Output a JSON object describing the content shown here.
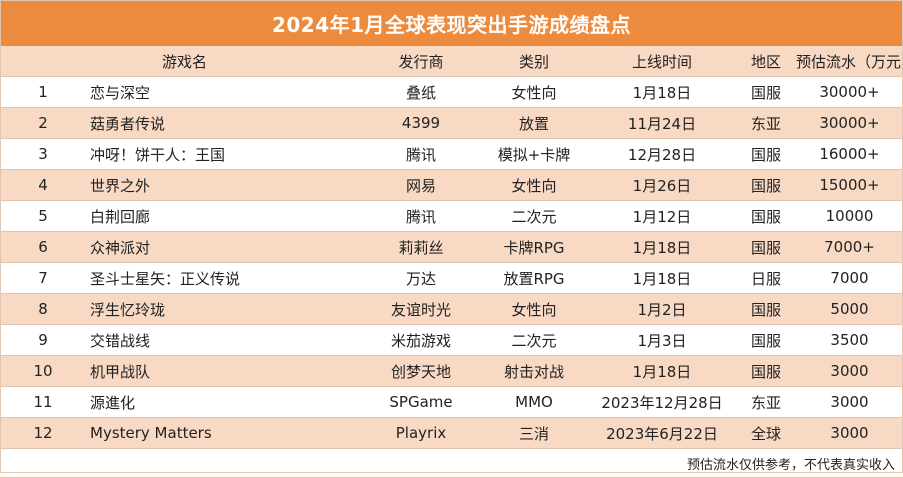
{
  "title": "2024年1月全球表现突出手游成绩盘点",
  "headers": {
    "index": "",
    "name": "游戏名",
    "publisher": "发行商",
    "category": "类别",
    "launch": "上线时间",
    "region": "地区",
    "revenue": "预估流水（万元）"
  },
  "rows": [
    {
      "index": "1",
      "name": "恋与深空",
      "publisher": "叠纸",
      "category": "女性向",
      "launch": "1月18日",
      "region": "国服",
      "revenue": "30000+"
    },
    {
      "index": "2",
      "name": "菇勇者传说",
      "publisher": "4399",
      "category": "放置",
      "launch": "11月24日",
      "region": "东亚",
      "revenue": "30000+"
    },
    {
      "index": "3",
      "name": "冲呀！饼干人：王国",
      "publisher": "腾讯",
      "category": "模拟+卡牌",
      "launch": "12月28日",
      "region": "国服",
      "revenue": "16000+"
    },
    {
      "index": "4",
      "name": "世界之外",
      "publisher": "网易",
      "category": "女性向",
      "launch": "1月26日",
      "region": "国服",
      "revenue": "15000+"
    },
    {
      "index": "5",
      "name": "白荆回廊",
      "publisher": "腾讯",
      "category": "二次元",
      "launch": "1月12日",
      "region": "国服",
      "revenue": "10000"
    },
    {
      "index": "6",
      "name": "众神派对",
      "publisher": "莉莉丝",
      "category": "卡牌RPG",
      "launch": "1月18日",
      "region": "国服",
      "revenue": "7000+"
    },
    {
      "index": "7",
      "name": "圣斗士星矢：正义传说",
      "publisher": "万达",
      "category": "放置RPG",
      "launch": "1月18日",
      "region": "日服",
      "revenue": "7000"
    },
    {
      "index": "8",
      "name": "浮生忆玲珑",
      "publisher": "友谊时光",
      "category": "女性向",
      "launch": "1月2日",
      "region": "国服",
      "revenue": "5000"
    },
    {
      "index": "9",
      "name": "交错战线",
      "publisher": "米茄游戏",
      "category": "二次元",
      "launch": "1月3日",
      "region": "国服",
      "revenue": "3500"
    },
    {
      "index": "10",
      "name": "机甲战队",
      "publisher": "创梦天地",
      "category": "射击对战",
      "launch": "1月18日",
      "region": "国服",
      "revenue": "3000"
    },
    {
      "index": "11",
      "name": "源進化",
      "publisher": "SPGame",
      "category": "MMO",
      "launch": "2023年12月28日",
      "region": "东亚",
      "revenue": "3000"
    },
    {
      "index": "12",
      "name": "Mystery Matters",
      "publisher": "Playrix",
      "category": "三消",
      "launch": "2023年6月22日",
      "region": "全球",
      "revenue": "3000"
    }
  ],
  "footnote": "预估流水仅供参考，不代表真实收入",
  "colors": {
    "header_bg": "#ec8b3e",
    "stripe": "#f8d9c3",
    "border": "#e0c6b0"
  }
}
